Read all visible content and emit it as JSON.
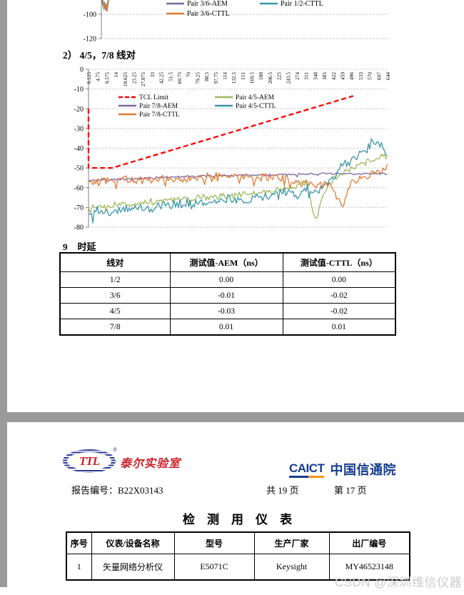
{
  "colors": {
    "red": "#FF0000",
    "purple": "#8064A2",
    "orange": "#E07B34",
    "green": "#9BBB59",
    "teal": "#3A96A8",
    "grid": "#C3C3C3",
    "axis": "#808080",
    "page_gray": "#9A9A9A",
    "watermark": "#CBCBCB",
    "logo_blue": "#163C90",
    "logo_orange": "#F7941D",
    "ttl_red": "#CC2229",
    "ttl_blue": "#2B3990"
  },
  "page1": {
    "section_heading": "2） 4/5，7/8 线对",
    "delay_section": {
      "heading_num": "9",
      "heading_text": "时延",
      "table": {
        "headers": [
          "线对",
          "测试值-AEM（ns）",
          "测试值-CTTL（ns）"
        ],
        "rows": [
          [
            "1/2",
            "0.00",
            "0.00"
          ],
          [
            "3/6",
            "-0.01",
            "-0.02"
          ],
          [
            "4/5",
            "-0.03",
            "-0.02"
          ],
          [
            "7/8",
            "0.01",
            "0.01"
          ]
        ]
      }
    }
  },
  "page2": {
    "ttl_logo": {
      "abbr": "TTL",
      "reg": "®",
      "cn": "泰尔实验室"
    },
    "caict_logo": {
      "en": "CAICT",
      "cn": "中国信通院"
    },
    "report_no": "报告编号：B22X03143",
    "pages_total": "共 19 页",
    "page_current": "第 17 页",
    "table_title": "检　测　用　仪　表",
    "instrument_table": {
      "headers": [
        "序号",
        "仪表/设备名称",
        "型号",
        "生产厂家",
        "出厂编号"
      ],
      "rows": [
        [
          "1",
          "矢量网络分析仪",
          "E5071C",
          "Keysight",
          "MY46523148"
        ]
      ]
    }
  },
  "watermark": "CSDN @深圳维信仪器",
  "chart_data": [
    {
      "type": "line",
      "note": "bottom portion of pair 3/6 and 1/2 TCL chart, cut off at top of screenshot",
      "yticks": [
        "-100",
        "-120"
      ],
      "legend_columns": [
        [
          {
            "name": "Pair 3/6-AEM",
            "color": "#8064A2"
          },
          {
            "name": "Pair 3/6-CTTL",
            "color": "#E07B34"
          }
        ],
        [
          {
            "name": "Pair 1/2-CTTL",
            "color": "#3A96A8"
          }
        ]
      ],
      "spike_series": [
        {
          "color": "#3A96A8",
          "points": [
            [
              142.5,
              -85
            ],
            [
              144,
              -93
            ],
            [
              146,
              -90
            ],
            [
              148,
              -96.5
            ],
            [
              151,
              -90
            ],
            [
              153,
              -83
            ]
          ]
        },
        {
          "color": "#E07B34",
          "points": [
            [
              143,
              -82
            ],
            [
              145.5,
              -96
            ],
            [
              147.5,
              -91
            ],
            [
              150,
              -97.5
            ],
            [
              152.5,
              -87
            ],
            [
              154.5,
              -79
            ]
          ]
        }
      ]
    },
    {
      "type": "line",
      "title": "",
      "xlabel": "",
      "ylabel": "",
      "ylim": [
        -80,
        0
      ],
      "grid": "horizontal-dashed",
      "legend_position": "inside-top",
      "yticks": [
        "0",
        "-10",
        "-20",
        "-30",
        "-40",
        "-50",
        "-60",
        "-70",
        "-80"
      ],
      "categories": [
        "0.125",
        "4.75",
        "9.375",
        "14",
        "18.625",
        "23.25",
        "27.875",
        "33",
        "42.25",
        "51.5",
        "60.75",
        "70",
        "79.25",
        "88.5",
        "97.75",
        "114",
        "132.5",
        "151",
        "169.5",
        "188",
        "206.5",
        "225",
        "243.5",
        "274",
        "311",
        "348",
        "385",
        "422",
        "459",
        "496",
        "533",
        "570",
        "607",
        "644"
      ],
      "legend_columns": [
        [
          {
            "name": "TCL Limit",
            "color": "#FF0000",
            "dashed": true
          },
          {
            "name": "Pair 7/8-AEM",
            "color": "#8064A2"
          },
          {
            "name": "Pair 7/8-CTTL",
            "color": "#E07B34"
          }
        ],
        [
          {
            "name": "Pair 4/5-AEM",
            "color": "#9BBB59"
          },
          {
            "name": "Pair 4/5-CTTL",
            "color": "#3A96A8"
          }
        ]
      ],
      "series": [
        {
          "name": "TCL Limit",
          "color": "#FF0000",
          "dashed": true,
          "points": [
            [
              0,
              -20
            ],
            [
              0,
              -50
            ],
            [
              2.6,
              -50
            ],
            [
              29.2,
              -13.5
            ]
          ]
        },
        {
          "name": "Pair 7/8-AEM",
          "color": "#8064A2",
          "noise": 0.5,
          "seed": 7,
          "values": [
            -56.5,
            -56.2,
            -56,
            -55.8,
            -55.6,
            -55.4,
            -55.2,
            -55,
            -54.9,
            -54.7,
            -54.6,
            -54.4,
            -54.3,
            -54.1,
            -54,
            -53.9,
            -53.8,
            -53.7,
            -53.6,
            -53.5,
            -53.4,
            -53.4,
            -53.3,
            -53.2,
            -53.1,
            -53,
            -52.9,
            -52.8,
            -52.8,
            -53,
            -53.2,
            -52.6,
            -52.9,
            -53.1
          ]
        },
        {
          "name": "Pair 4/5-AEM",
          "color": "#9BBB59",
          "noise": 1.3,
          "seed": 13,
          "values": [
            -70,
            -69.6,
            -69.2,
            -68.8,
            -68.4,
            -68,
            -67.6,
            -67.2,
            -66.8,
            -66.4,
            -66,
            -65.6,
            -65.2,
            -64.8,
            -64.4,
            -64,
            -63.6,
            -63.2,
            -62.8,
            -62.4,
            -62,
            -61,
            -60,
            -59,
            -57.5,
            -76,
            -62,
            -56,
            -53,
            -50.5,
            -48,
            -46,
            -44.5,
            -43.5
          ]
        },
        {
          "name": "Pair 4/5-CTTL",
          "color": "#3A96A8",
          "noise": 2.2,
          "seed": 29,
          "values": [
            -72.5,
            -72,
            -71.8,
            -71.5,
            -71,
            -70.5,
            -70.2,
            -70,
            -69.6,
            -69.2,
            -68.8,
            -68.2,
            -67.8,
            -67.2,
            -66.8,
            -66.5,
            -66,
            -65.8,
            -66.2,
            -65.5,
            -65,
            -63.5,
            -60.5,
            -64.5,
            -61,
            -63.5,
            -58.5,
            -53.5,
            -49,
            -46,
            -42.5,
            -38.5,
            -36.5,
            -43
          ]
        },
        {
          "name": "Pair 7/8-CTTL",
          "color": "#E07B34",
          "noise": 2.0,
          "seed": 5,
          "values": [
            -57.5,
            -56.8,
            -56.5,
            -56.3,
            -56.2,
            -56,
            -55.8,
            -55.6,
            -55.4,
            -55.2,
            -55.2,
            -55,
            -54.8,
            -54.6,
            -54.5,
            -54.3,
            -54.2,
            -54,
            -54,
            -54.2,
            -54.5,
            -55,
            -55.8,
            -58,
            -57,
            -60,
            -58,
            -61,
            -68,
            -57,
            -55,
            -53,
            -51.5,
            -49.5
          ]
        }
      ]
    }
  ]
}
